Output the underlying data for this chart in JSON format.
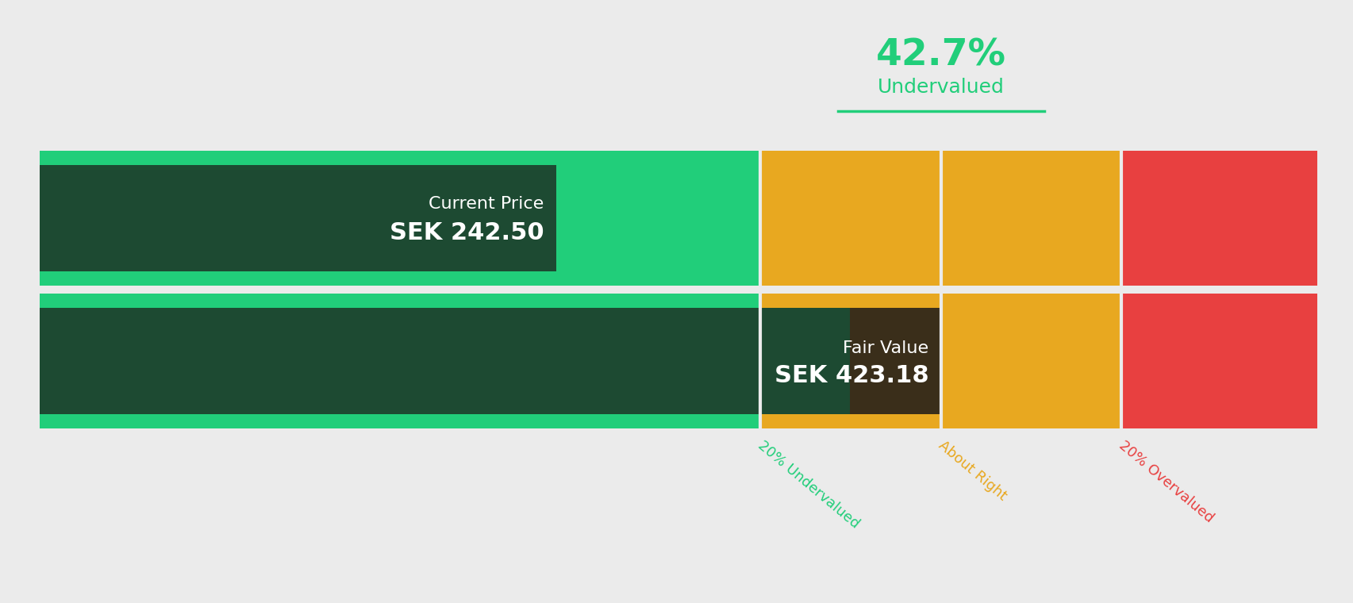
{
  "background_color": "#ebebeb",
  "percentage_text": "42.7%",
  "percentage_label": "Undervalued",
  "percentage_color": "#21ce7a",
  "current_price_label": "Current Price",
  "current_price_value": "SEK 242.50",
  "fair_value_label": "Fair Value",
  "fair_value_value": "SEK 423.18",
  "current_price": 242.5,
  "fair_value": 423.18,
  "xmax": 600.0,
  "color_green_light": "#21ce7a",
  "color_green_dark": "#1d4a32",
  "color_green_dark2": "#3a2e1a",
  "color_yellow": "#e8a820",
  "color_red": "#e84040",
  "label_20_undervalued": "20% Undervalued",
  "label_about_right": "About Right",
  "label_20_overvalued": "20% Overvalued",
  "label_color_undervalued": "#21ce7a",
  "label_color_about_right": "#e8a820",
  "label_color_overvalued": "#e84040"
}
